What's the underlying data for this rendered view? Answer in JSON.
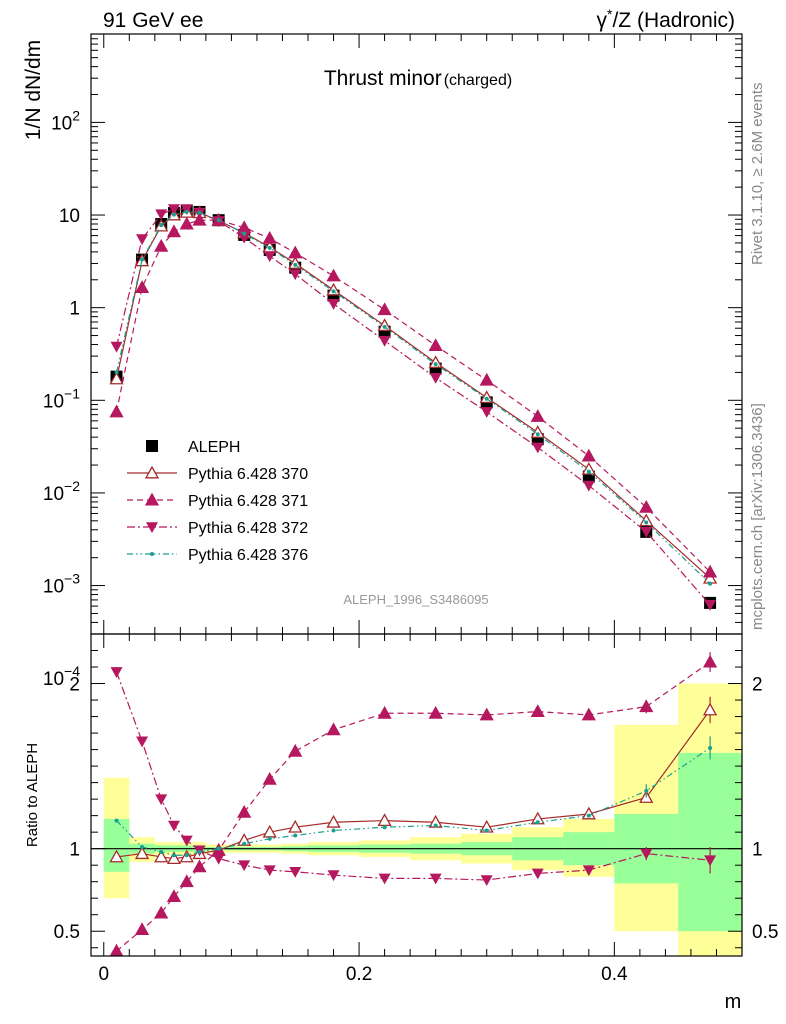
{
  "header": {
    "left": "91 GeV ee",
    "right_prefix": "γ",
    "right_sup": "*",
    "right_suffix": "/Z (Hadronic)"
  },
  "side": {
    "top": "Rivet 3.1.10, ≥ 2.6M events",
    "bottom": "mcplots.cern.ch [arXiv:1306.3436]"
  },
  "watermark": "ALEPH_1996_S3486095",
  "chart_data": {
    "type": "line",
    "title": "Thrust minor",
    "title_suffix": "(charged)",
    "xlabel": "m",
    "ylabel": "1/N dN/dm",
    "ratio_ylabel": "Ratio to ALEPH",
    "xlim": [
      -0.01,
      0.5
    ],
    "ylim": [
      0.0003,
      900
    ],
    "yscale": "log",
    "ratio_ylim": [
      0.35,
      2.3
    ],
    "x_ticks": [
      0,
      0.2,
      0.4
    ],
    "x_tick_labels": [
      "0",
      "0.2",
      "0.4"
    ],
    "y_ticks": [
      0.0001,
      0.001,
      0.01,
      0.1,
      1,
      10,
      100
    ],
    "y_tick_labels": [
      {
        "base": "10",
        "exp": "−4"
      },
      {
        "base": "10",
        "exp": "−3"
      },
      {
        "base": "10",
        "exp": "−2"
      },
      {
        "base": "10",
        "exp": "−1"
      },
      {
        "base": "1",
        "exp": ""
      },
      {
        "base": "10",
        "exp": ""
      },
      {
        "base": "10",
        "exp": "2"
      }
    ],
    "ratio_ticks": [
      0.5,
      1,
      2
    ],
    "ratio_tick_labels": [
      "0.5",
      "1",
      "2"
    ],
    "legend_position": "bottom-left",
    "x": [
      0.01,
      0.03,
      0.045,
      0.055,
      0.065,
      0.075,
      0.09,
      0.11,
      0.13,
      0.15,
      0.18,
      0.22,
      0.26,
      0.3,
      0.34,
      0.38,
      0.425,
      0.475
    ],
    "bin_edges": [
      0,
      0.02,
      0.04,
      0.05,
      0.06,
      0.07,
      0.08,
      0.1,
      0.12,
      0.14,
      0.16,
      0.2,
      0.24,
      0.28,
      0.32,
      0.36,
      0.4,
      0.45,
      0.5
    ],
    "data": {
      "name": "ALEPH",
      "values": [
        0.18,
        3.3,
        8.0,
        10.5,
        11.2,
        10.8,
        8.8,
        6.1,
        4.2,
        2.7,
        1.35,
        0.55,
        0.22,
        0.095,
        0.038,
        0.015,
        0.0038,
        0.00065
      ]
    },
    "band_inner": [
      [
        0.86,
        1.18
      ],
      [
        0.97,
        1.03
      ],
      [
        0.98,
        1.02
      ],
      [
        0.98,
        1.02
      ],
      [
        0.98,
        1.02
      ],
      [
        0.98,
        1.02
      ],
      [
        0.99,
        1.01
      ],
      [
        0.99,
        1.01
      ],
      [
        0.99,
        1.01
      ],
      [
        0.985,
        1.015
      ],
      [
        0.98,
        1.02
      ],
      [
        0.975,
        1.025
      ],
      [
        0.97,
        1.03
      ],
      [
        0.96,
        1.04
      ],
      [
        0.93,
        1.07
      ],
      [
        0.9,
        1.1
      ],
      [
        0.79,
        1.21
      ],
      [
        0.5,
        1.58
      ]
    ],
    "band_outer": [
      [
        0.7,
        1.43
      ],
      [
        0.92,
        1.07
      ],
      [
        0.96,
        1.04
      ],
      [
        0.96,
        1.04
      ],
      [
        0.96,
        1.04
      ],
      [
        0.96,
        1.04
      ],
      [
        0.975,
        1.025
      ],
      [
        0.975,
        1.025
      ],
      [
        0.975,
        1.025
      ],
      [
        0.97,
        1.03
      ],
      [
        0.96,
        1.04
      ],
      [
        0.95,
        1.05
      ],
      [
        0.93,
        1.07
      ],
      [
        0.91,
        1.09
      ],
      [
        0.87,
        1.13
      ],
      [
        0.83,
        1.18
      ],
      [
        0.5,
        1.75
      ],
      [
        0.35,
        2.0
      ]
    ],
    "series": [
      {
        "name": "Pythia 6.428 370",
        "color": "#a52a2a",
        "marker": "triangle-up-open",
        "line": "solid",
        "values": [
          0.17,
          3.2,
          7.6,
          10.0,
          10.7,
          10.6,
          8.7,
          6.4,
          4.5,
          3.0,
          1.55,
          0.64,
          0.255,
          0.107,
          0.045,
          0.018,
          0.005,
          0.0012
        ],
        "ratio": [
          0.95,
          0.97,
          0.95,
          0.94,
          0.95,
          0.97,
          0.99,
          1.05,
          1.1,
          1.13,
          1.16,
          1.17,
          1.16,
          1.13,
          1.18,
          1.21,
          1.31,
          1.84
        ],
        "ratio_err": [
          0,
          0,
          0,
          0,
          0,
          0,
          0,
          0,
          0,
          0,
          0,
          0,
          0,
          0,
          0,
          0,
          0.03,
          0.08
        ]
      },
      {
        "name": "Pythia 6.428 371",
        "color": "#b5185e",
        "marker": "triangle-up",
        "line": "dashed",
        "values": [
          0.075,
          1.65,
          4.6,
          6.6,
          8.0,
          8.8,
          8.8,
          7.3,
          5.6,
          3.9,
          2.2,
          0.95,
          0.39,
          0.165,
          0.067,
          0.025,
          0.007,
          0.0014
        ],
        "ratio": [
          0.38,
          0.51,
          0.61,
          0.71,
          0.8,
          0.89,
          0.99,
          1.22,
          1.42,
          1.59,
          1.72,
          1.82,
          1.82,
          1.81,
          1.83,
          1.81,
          1.86,
          2.13
        ],
        "ratio_err": [
          0,
          0,
          0,
          0,
          0,
          0,
          0,
          0,
          0,
          0,
          0,
          0,
          0,
          0,
          0,
          0,
          0.04,
          0.06
        ]
      },
      {
        "name": "Pythia 6.428 372",
        "color": "#b5185e",
        "marker": "triangle-down",
        "line": "dashdot",
        "values": [
          0.38,
          5.5,
          10.2,
          11.6,
          11.6,
          10.6,
          8.6,
          5.7,
          3.6,
          2.3,
          1.1,
          0.44,
          0.175,
          0.075,
          0.031,
          0.012,
          0.0038,
          0.00062
        ],
        "ratio": [
          2.07,
          1.65,
          1.3,
          1.14,
          1.05,
          0.99,
          0.94,
          0.9,
          0.87,
          0.86,
          0.84,
          0.82,
          0.82,
          0.81,
          0.85,
          0.87,
          0.97,
          0.93
        ],
        "ratio_err": [
          0,
          0,
          0,
          0,
          0,
          0,
          0,
          0,
          0,
          0,
          0,
          0,
          0,
          0,
          0,
          0,
          0.04,
          0.08
        ]
      },
      {
        "name": "Pythia 6.428 376",
        "color": "#1a9e8f",
        "marker": "dot",
        "line": "dashdotdot",
        "values": [
          0.2,
          3.3,
          7.8,
          10.1,
          10.8,
          10.6,
          8.8,
          6.3,
          4.4,
          2.9,
          1.5,
          0.62,
          0.245,
          0.104,
          0.043,
          0.017,
          0.0048,
          0.00105
        ],
        "ratio": [
          1.17,
          1.01,
          0.98,
          0.96,
          0.96,
          0.98,
          1.0,
          1.03,
          1.06,
          1.08,
          1.11,
          1.13,
          1.14,
          1.11,
          1.16,
          1.2,
          1.35,
          1.61
        ],
        "ratio_err": [
          0,
          0,
          0,
          0,
          0,
          0,
          0,
          0,
          0,
          0,
          0,
          0,
          0,
          0,
          0,
          0,
          0.04,
          0.07
        ]
      }
    ]
  }
}
